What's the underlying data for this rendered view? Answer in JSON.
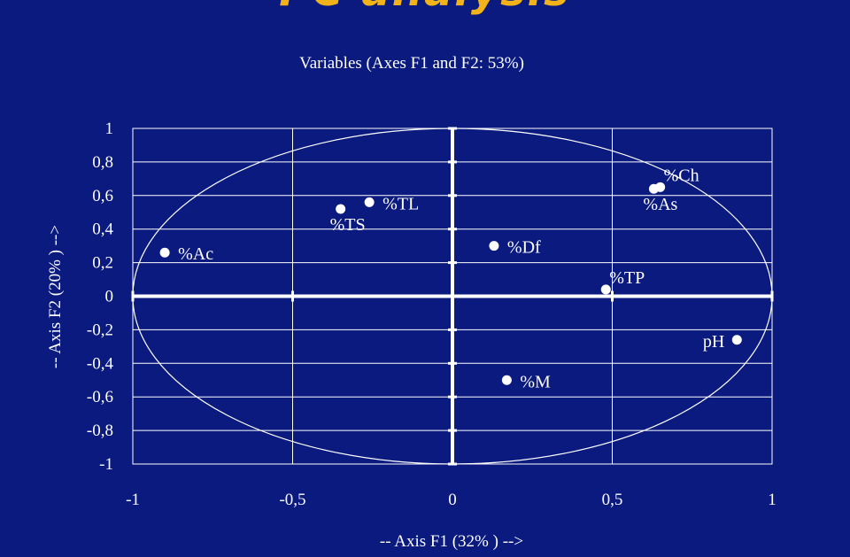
{
  "slide": {
    "heading": "PC analysis"
  },
  "colors": {
    "background": "#0a1a7e",
    "foreground": "#ffffff",
    "heading": "#f2b21a"
  },
  "chart_data": {
    "type": "scatter",
    "title": "Variables (Axes F1 and F2: 53%)",
    "xlabel": "-- Axis F1 (32% ) -->",
    "ylabel": "-- Axis F2 (20% ) -->",
    "xlim": [
      -1,
      1
    ],
    "ylim": [
      -1,
      1
    ],
    "x_ticks": [
      -1,
      -0.5,
      0,
      0.5,
      1
    ],
    "x_tick_labels": [
      "-1",
      "-0,5",
      "0",
      "0,5",
      "1"
    ],
    "y_ticks": [
      1,
      0.8,
      0.6,
      0.4,
      0.2,
      0,
      -0.2,
      -0.4,
      -0.6,
      -0.8,
      -1
    ],
    "y_tick_labels": [
      "1",
      "0,8",
      "0,6",
      "0,4",
      "0,2",
      "0",
      "-0,2",
      "-0,4",
      "-0,6",
      "-0,8",
      "-1"
    ],
    "grid": true,
    "correlation_circle": true,
    "points": [
      {
        "label": "%Ac",
        "x": -0.9,
        "y": 0.26,
        "label_pos": "right"
      },
      {
        "label": "%TS",
        "x": -0.35,
        "y": 0.52,
        "label_pos": "below"
      },
      {
        "label": "%TL",
        "x": -0.26,
        "y": 0.56,
        "label_pos": "right"
      },
      {
        "label": "%Df",
        "x": 0.13,
        "y": 0.3,
        "label_pos": "right"
      },
      {
        "label": "%As",
        "x": 0.63,
        "y": 0.64,
        "label_pos": "below"
      },
      {
        "label": "%Ch",
        "x": 0.65,
        "y": 0.65,
        "label_pos": "above-right"
      },
      {
        "label": "%TP",
        "x": 0.48,
        "y": 0.04,
        "label_pos": "above-right"
      },
      {
        "label": "pH",
        "x": 0.89,
        "y": -0.26,
        "label_pos": "left"
      },
      {
        "label": "%M",
        "x": 0.17,
        "y": -0.5,
        "label_pos": "right"
      }
    ]
  }
}
